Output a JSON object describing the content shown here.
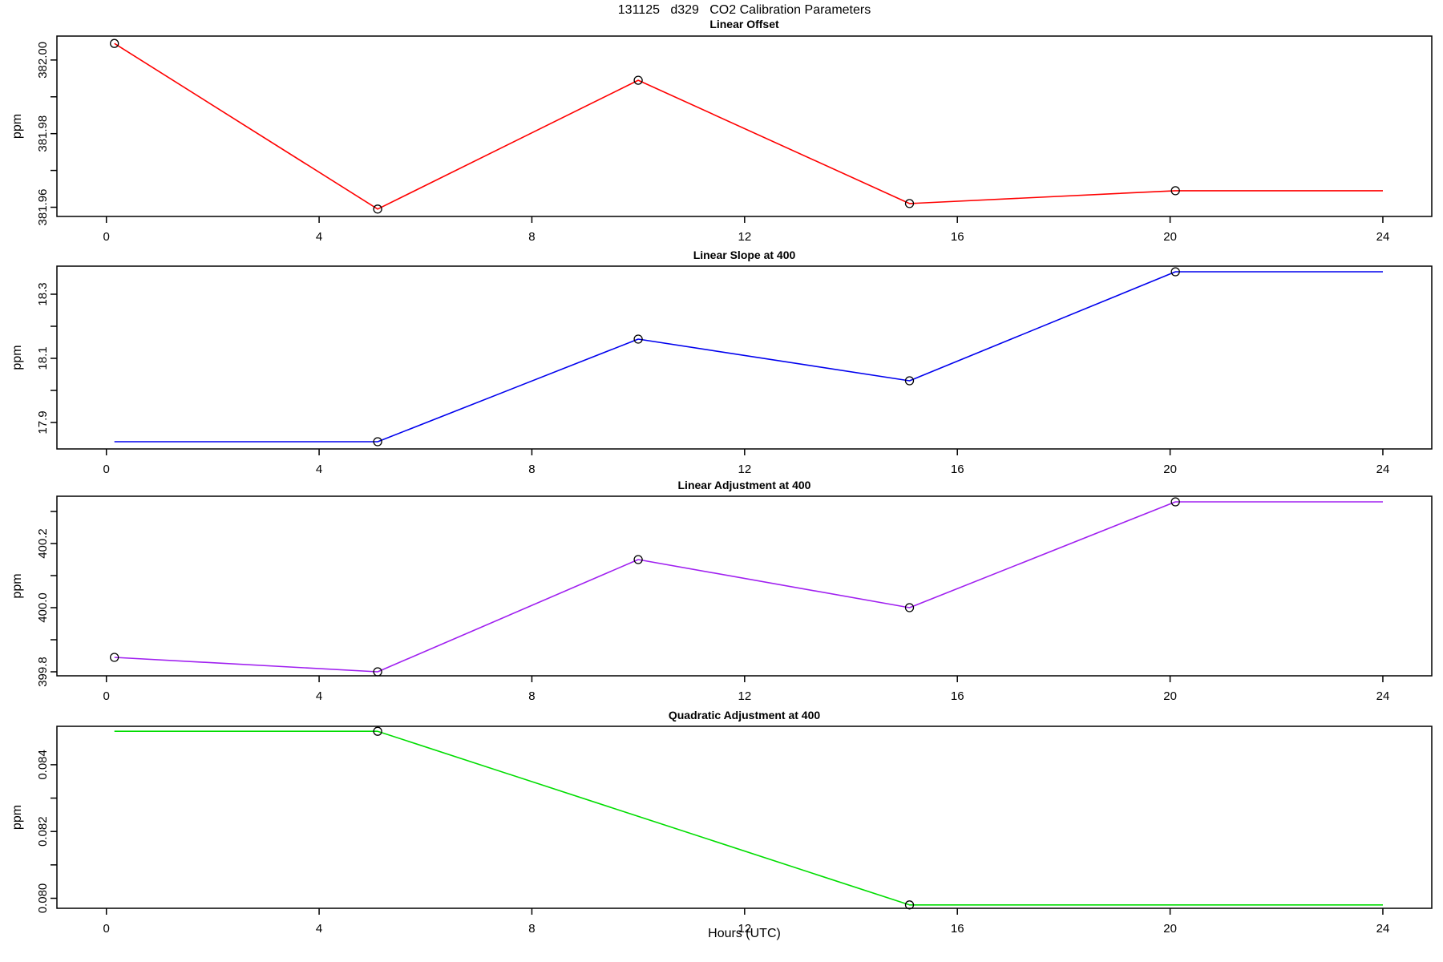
{
  "figure": {
    "main_title": "131125   d329   CO2 Calibration Parameters",
    "xlabel": "Hours (UTC)",
    "background_color": "#ffffff",
    "axis_color": "#000000",
    "marker_color": "#000000"
  },
  "chart_data": [
    {
      "type": "line",
      "title": "Linear Offset",
      "ylabel": "ppm",
      "color": "#ff0000",
      "xlim": [
        -0.93,
        24.92
      ],
      "ylim": [
        381.9575,
        382.0065
      ],
      "xticks": [
        0,
        4,
        8,
        12,
        16,
        20,
        24
      ],
      "yticks": [
        {
          "v": 382.0,
          "label": "382.00"
        },
        {
          "v": 381.99,
          "label": ""
        },
        {
          "v": 381.98,
          "label": "381.98"
        },
        {
          "v": 381.97,
          "label": ""
        },
        {
          "v": 381.96,
          "label": "381.96"
        }
      ],
      "line": [
        [
          0.15,
          382.0045
        ],
        [
          5.1,
          381.9595
        ],
        [
          10,
          381.9945
        ],
        [
          15.1,
          381.961
        ],
        [
          20.1,
          381.9645
        ],
        [
          24,
          381.9645
        ]
      ],
      "markers": [
        [
          0.15,
          382.0045
        ],
        [
          5.1,
          381.9595
        ],
        [
          10,
          381.9945
        ],
        [
          15.1,
          381.961
        ],
        [
          20.1,
          381.9645
        ]
      ],
      "grid": false,
      "legend": "none"
    },
    {
      "type": "line",
      "title": "Linear Slope at 400",
      "ylabel": "ppm",
      "color": "#0000ee",
      "xlim": [
        -0.93,
        24.92
      ],
      "ylim": [
        17.8175,
        18.3875
      ],
      "xticks": [
        0,
        4,
        8,
        12,
        16,
        20,
        24
      ],
      "yticks": [
        {
          "v": 18.3,
          "label": "18.3"
        },
        {
          "v": 18.2,
          "label": ""
        },
        {
          "v": 18.1,
          "label": "18.1"
        },
        {
          "v": 18.0,
          "label": ""
        },
        {
          "v": 17.9,
          "label": "17.9"
        }
      ],
      "line": [
        [
          0.15,
          17.84
        ],
        [
          5.1,
          17.84
        ],
        [
          10,
          18.16
        ],
        [
          15.1,
          18.03
        ],
        [
          20.1,
          18.37
        ],
        [
          24,
          18.37
        ]
      ],
      "markers": [
        [
          5.1,
          17.84
        ],
        [
          10,
          18.16
        ],
        [
          15.1,
          18.03
        ],
        [
          20.1,
          18.37
        ]
      ],
      "grid": false,
      "legend": "none"
    },
    {
      "type": "line",
      "title": "Linear Adjustment at 400",
      "ylabel": "ppm",
      "color": "#a020f0",
      "xlim": [
        -0.93,
        24.92
      ],
      "ylim": [
        399.7875,
        400.3475
      ],
      "xticks": [
        0,
        4,
        8,
        12,
        16,
        20,
        24
      ],
      "yticks": [
        {
          "v": 400.3,
          "label": ""
        },
        {
          "v": 400.2,
          "label": "400.2"
        },
        {
          "v": 400.1,
          "label": ""
        },
        {
          "v": 400.0,
          "label": "400.0"
        },
        {
          "v": 399.9,
          "label": ""
        },
        {
          "v": 399.8,
          "label": "399.8"
        }
      ],
      "line": [
        [
          0.15,
          399.845
        ],
        [
          5.1,
          399.8
        ],
        [
          10,
          400.15
        ],
        [
          15.1,
          400.0
        ],
        [
          20.1,
          400.33
        ],
        [
          24,
          400.33
        ]
      ],
      "markers": [
        [
          0.15,
          399.845
        ],
        [
          5.1,
          399.8
        ],
        [
          10,
          400.15
        ],
        [
          15.1,
          400.0
        ],
        [
          20.1,
          400.33
        ]
      ],
      "grid": false,
      "legend": "none"
    },
    {
      "type": "line",
      "title": "Quadratic Adjustment at 400",
      "ylabel": "ppm",
      "color": "#00dd00",
      "xlim": [
        -0.93,
        24.92
      ],
      "ylim": [
        0.0797,
        0.08515
      ],
      "xticks": [
        0,
        4,
        8,
        12,
        16,
        20,
        24
      ],
      "yticks": [
        {
          "v": 0.084,
          "label": "0.084"
        },
        {
          "v": 0.083,
          "label": ""
        },
        {
          "v": 0.082,
          "label": "0.082"
        },
        {
          "v": 0.081,
          "label": ""
        },
        {
          "v": 0.08,
          "label": "0.080"
        }
      ],
      "line": [
        [
          0.15,
          0.085
        ],
        [
          5.1,
          0.085
        ],
        [
          15.1,
          0.0798
        ],
        [
          24,
          0.0798
        ]
      ],
      "markers": [
        [
          5.1,
          0.085
        ],
        [
          15.1,
          0.0798
        ]
      ],
      "grid": false,
      "legend": "none"
    }
  ]
}
